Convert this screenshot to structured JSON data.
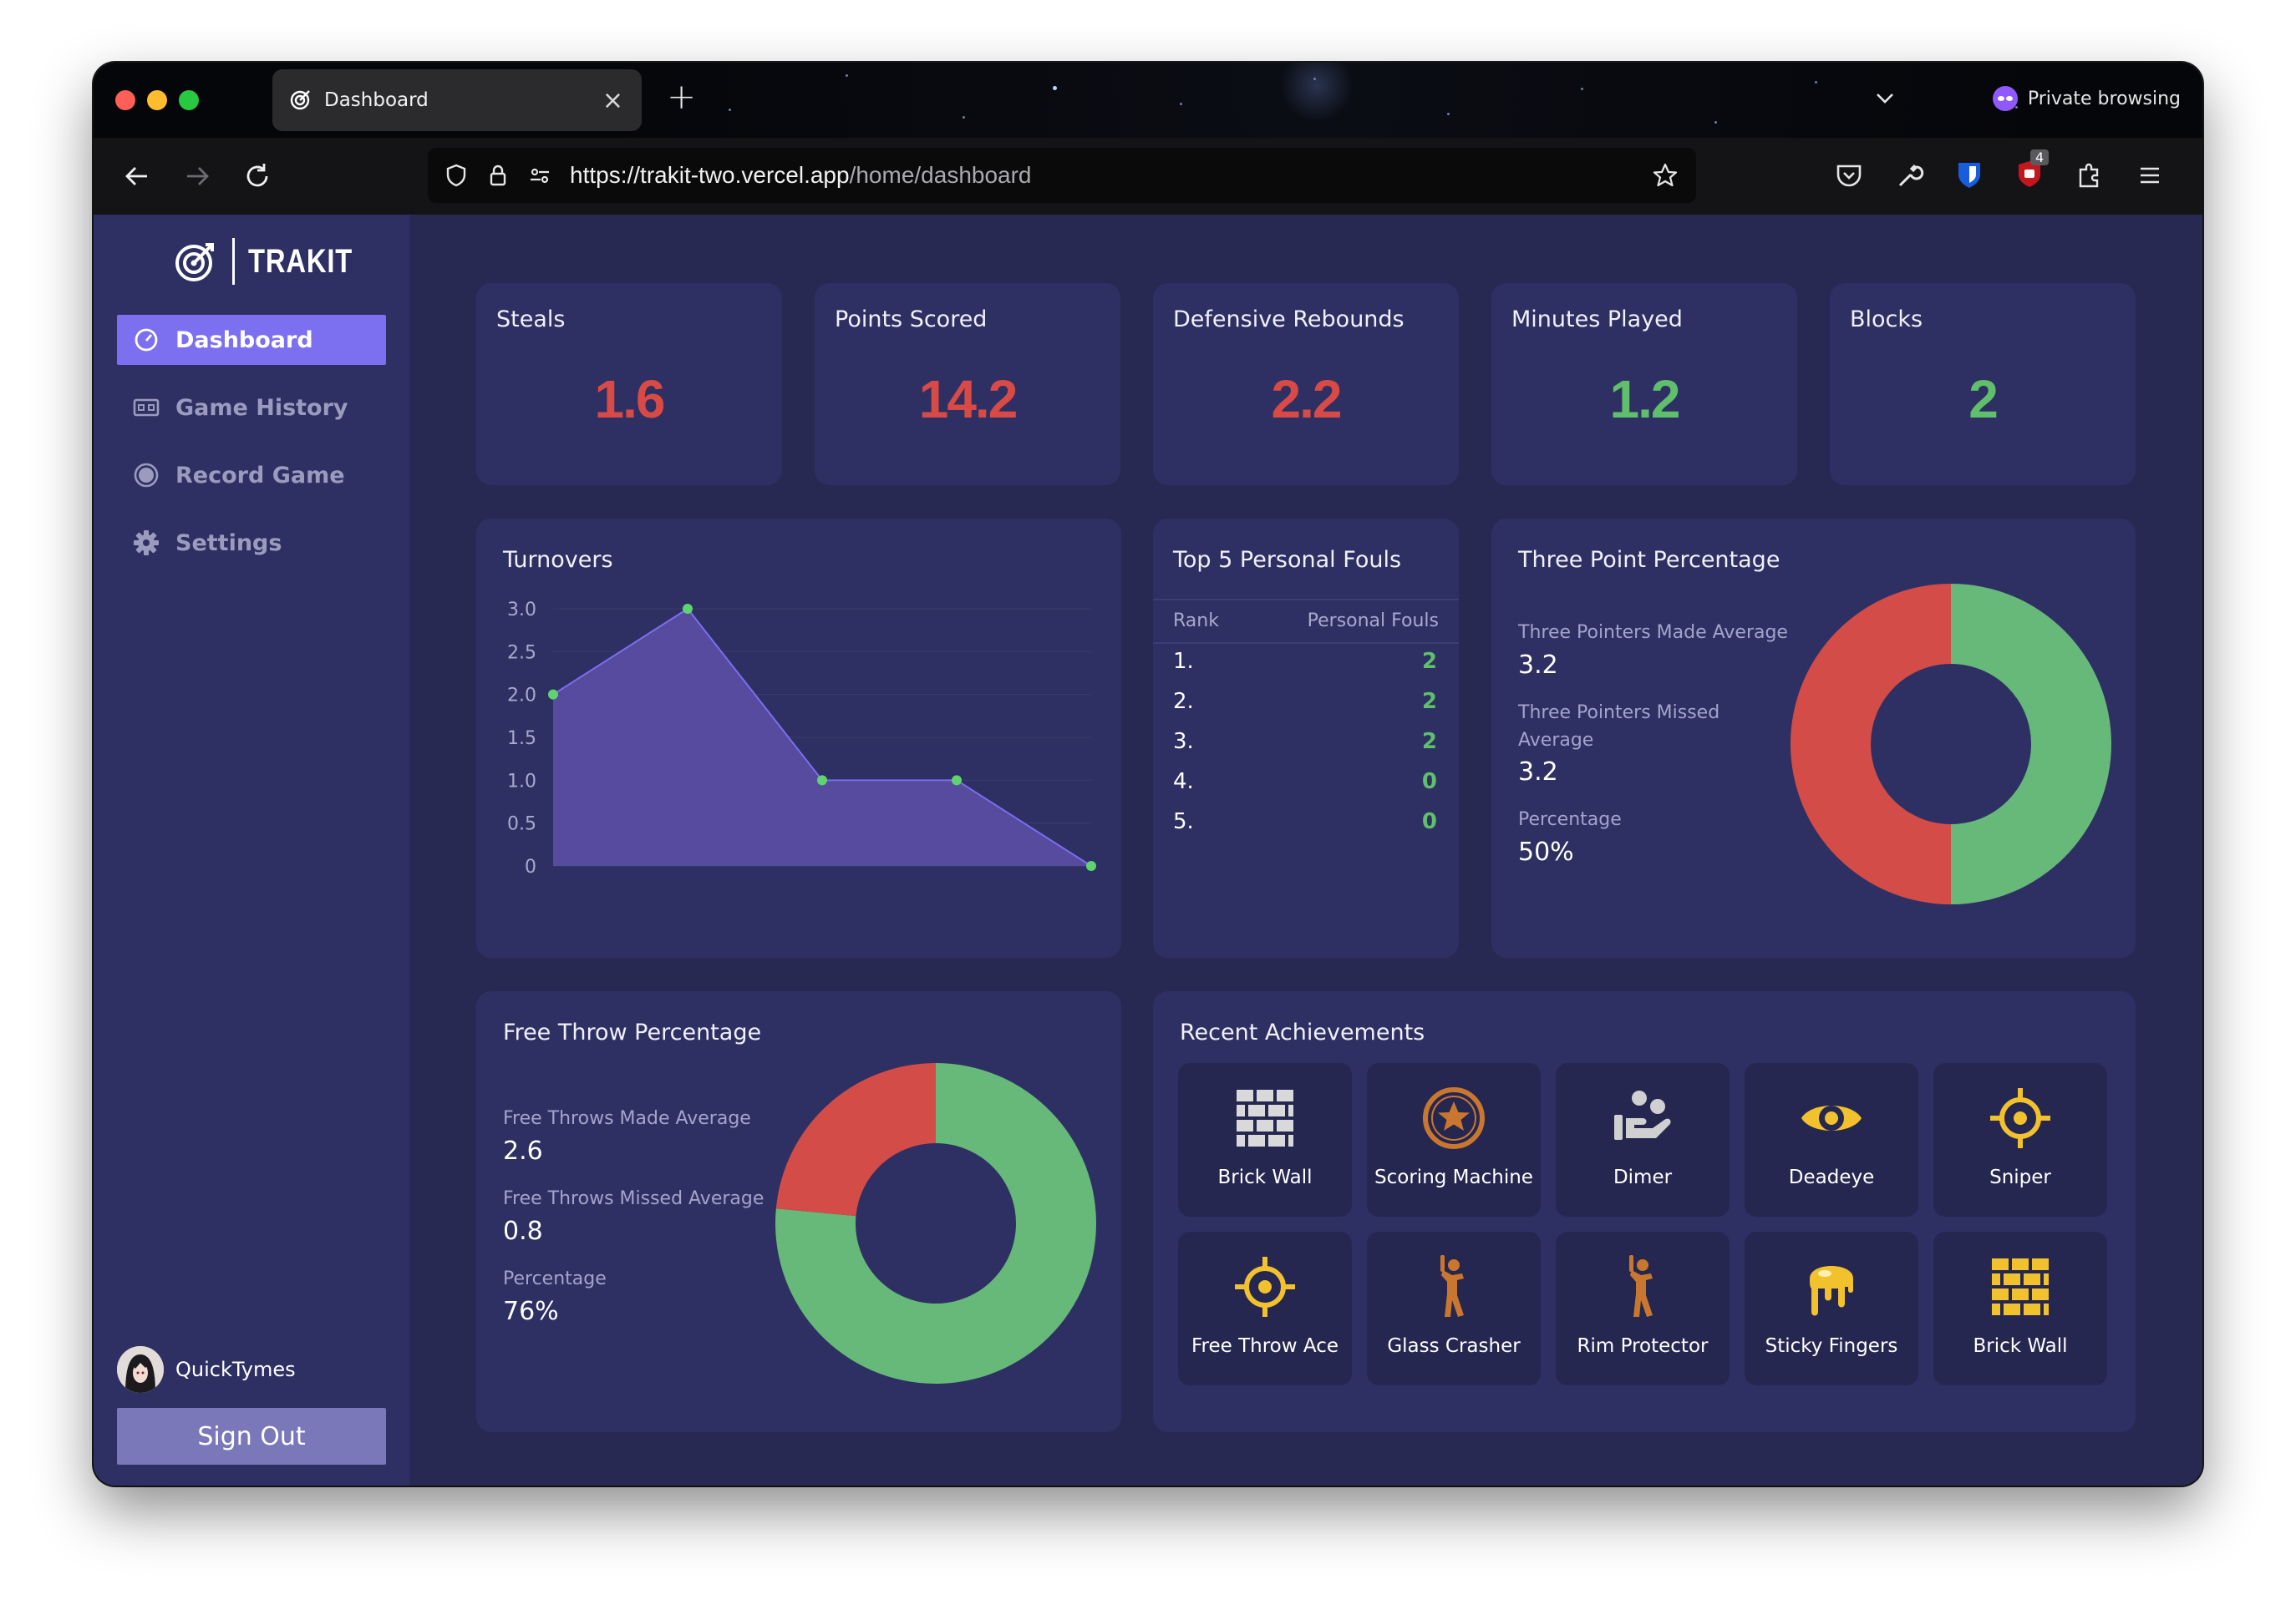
{
  "browser": {
    "tab_title": "Dashboard",
    "url_host": "https://trakit-two.vercel.app",
    "url_path": "/home/dashboard",
    "private_label": "Private browsing",
    "extension_badge": "4"
  },
  "app": {
    "name": "TRAKIT",
    "menu": [
      {
        "label": "Dashboard",
        "icon": "gauge-icon",
        "active": true
      },
      {
        "label": "Game History",
        "icon": "scoreboard-icon"
      },
      {
        "label": "Record Game",
        "icon": "record-icon"
      },
      {
        "label": "Settings",
        "icon": "gear-icon"
      }
    ],
    "user": {
      "name": "QuickTymes"
    },
    "sign_out": "Sign Out"
  },
  "stats": [
    {
      "label": "Steals",
      "value": "1.6",
      "color": "#d84a45"
    },
    {
      "label": "Points Scored",
      "value": "14.2",
      "color": "#d84a45"
    },
    {
      "label": "Defensive Rebounds",
      "value": "2.2",
      "color": "#d84a45"
    },
    {
      "label": "Minutes Played",
      "value": "1.2",
      "color": "#5fbf6a"
    },
    {
      "label": "Blocks",
      "value": "2",
      "color": "#5fbf6a"
    }
  ],
  "turnovers": {
    "title": "Turnovers",
    "chart_data": {
      "type": "area",
      "x": [
        1,
        2,
        3,
        4,
        5
      ],
      "values": [
        2,
        3,
        1,
        1,
        0
      ],
      "ylim": [
        0,
        3
      ],
      "yticks": [
        "0",
        "0.5",
        "1.0",
        "1.5",
        "2.0",
        "2.5",
        "3.0"
      ],
      "fill_color": "#564b9e",
      "line_color": "#7b6ef0",
      "point_color": "#5fd46e"
    }
  },
  "fouls": {
    "title": "Top 5 Personal Fouls",
    "col_rank": "Rank",
    "col_value": "Personal Fouls",
    "rows": [
      {
        "rank": "1.",
        "value": "2"
      },
      {
        "rank": "2.",
        "value": "2"
      },
      {
        "rank": "3.",
        "value": "2"
      },
      {
        "rank": "4.",
        "value": "0"
      },
      {
        "rank": "5.",
        "value": "0"
      }
    ]
  },
  "three_point": {
    "title": "Three Point Percentage",
    "made_label": "Three Pointers Made Average",
    "made_value": "3.2",
    "missed_label": "Three Pointers Missed Average",
    "missed_value": "3.2",
    "pct_label": "Percentage",
    "pct_value": "50%",
    "chart_data": {
      "type": "pie",
      "labels": [
        "Made",
        "Missed"
      ],
      "values": [
        3.2,
        3.2
      ],
      "colors": [
        "#66b978",
        "#d44c47"
      ]
    }
  },
  "free_throw": {
    "title": "Free Throw Percentage",
    "made_label": "Free Throws Made Average",
    "made_value": "2.6",
    "missed_label": "Free Throws Missed Average",
    "missed_value": "0.8",
    "pct_label": "Percentage",
    "pct_value": "76%",
    "chart_data": {
      "type": "pie",
      "labels": [
        "Made",
        "Missed"
      ],
      "values": [
        2.6,
        0.8
      ],
      "colors": [
        "#66b978",
        "#d44c47"
      ]
    }
  },
  "achievements": {
    "title": "Recent Achievements",
    "items": [
      {
        "label": "Brick Wall",
        "icon": "brick-wall-icon",
        "color": "#d9d9d9"
      },
      {
        "label": "Scoring Machine",
        "icon": "star-badge-icon",
        "color": "#c9772f"
      },
      {
        "label": "Dimer",
        "icon": "assist-hand-icon",
        "color": "#d0d0d0"
      },
      {
        "label": "Deadeye",
        "icon": "eye-icon",
        "color": "#f2c12e"
      },
      {
        "label": "Sniper",
        "icon": "crosshair-icon",
        "color": "#f2c12e"
      },
      {
        "label": "Free Throw Ace",
        "icon": "crosshair-icon",
        "color": "#f2c12e"
      },
      {
        "label": "Glass Crasher",
        "icon": "jumping-player-icon",
        "color": "#c9772f"
      },
      {
        "label": "Rim Protector",
        "icon": "jumping-player-icon",
        "color": "#c9772f"
      },
      {
        "label": "Sticky Fingers",
        "icon": "slime-icon",
        "color": "#f2c12e"
      },
      {
        "label": "Brick Wall",
        "icon": "brick-wall-icon",
        "color": "#f2c12e"
      }
    ]
  }
}
